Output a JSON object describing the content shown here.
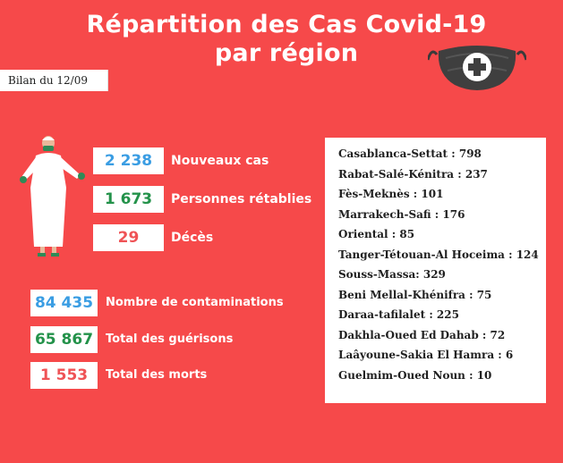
{
  "header": {
    "title_line1": "Répartition des Cas Covid-19",
    "title_line2": "par région",
    "date_label": "Bilan du 12/09"
  },
  "daily": [
    {
      "value": "2 238",
      "label": "Nouveaux cas",
      "color": "#3a9de3"
    },
    {
      "value": "1 673",
      "label": "Personnes rétablies",
      "color": "#23924a"
    },
    {
      "value": "29",
      "label": "Décès",
      "color": "#ef5356"
    }
  ],
  "totals": [
    {
      "value": "84 435",
      "label": "Nombre de contaminations",
      "color": "#3a9de3"
    },
    {
      "value": "65 867",
      "label": "Total des guérisons",
      "color": "#23924a"
    },
    {
      "value": "1 553",
      "label": "Total des morts",
      "color": "#ef5356"
    }
  ],
  "regions": [
    "Casablanca-Settat : 798",
    "Rabat-Salé-Kénitra : 237",
    "Fès-Meknès : 101",
    "Marrakech-Safi : 176",
    "Oriental : 85",
    "Tanger-Tétouan-Al Hoceima : 124",
    "Souss-Massa: 329",
    "Beni Mellal-Khénifra : 75",
    "Daraa-tafilalet : 225",
    "Dakhla-Oued Ed Dahab : 72",
    "Laâyoune-Sakia El Hamra : 6",
    "Guelmim-Oued Noun : 10"
  ],
  "icons": {
    "mask": "face-mask-medical-cross-icon",
    "doctor": "doctor-illustration-icon"
  },
  "colors": {
    "background": "#f6494a",
    "blue": "#3a9de3",
    "green": "#23924a",
    "red": "#ef5356"
  }
}
